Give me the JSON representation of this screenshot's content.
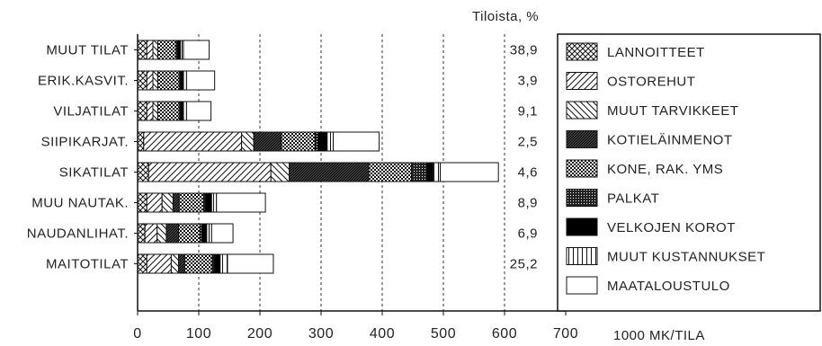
{
  "chart_data": {
    "type": "bar",
    "orientation": "horizontal",
    "stacked": true,
    "title": "",
    "share_header": "Tiloista, %",
    "xlabel": "1000 MK/TILA",
    "ylabel": "",
    "xlim": [
      0,
      700
    ],
    "xticks": [
      "0",
      "100",
      "200",
      "300",
      "400",
      "500",
      "600",
      "700"
    ],
    "grid": "vertical-dashed",
    "legend_position": "right",
    "categories": [
      "MUUT TILAT",
      "ERIK.KASVIT.",
      "VILJATILAT",
      "SIIPIKARJAT.",
      "SIKATILAT",
      "MUU NAUTAK.",
      "NAUDANLIHAT.",
      "MAITOTILAT"
    ],
    "shares": [
      "38,9",
      "3,9",
      "9,1",
      "2,5",
      "4,6",
      "8,9",
      "6,9",
      "25,2"
    ],
    "series": [
      {
        "name": "LANNOITTEET",
        "pattern": "crosshatch",
        "values": [
          15,
          15,
          15,
          10,
          18,
          15,
          12,
          15
        ]
      },
      {
        "name": "OSTOREHUT",
        "pattern": "diag-forward",
        "values": [
          10,
          10,
          10,
          160,
          200,
          25,
          20,
          40
        ]
      },
      {
        "name": "MUUT TARVIKKEET",
        "pattern": "diag-back",
        "values": [
          8,
          8,
          8,
          20,
          30,
          18,
          15,
          12
        ]
      },
      {
        "name": "KOTIELÄINMENOT",
        "pattern": "dense-diag",
        "values": [
          0,
          0,
          0,
          45,
          130,
          10,
          20,
          10
        ]
      },
      {
        "name": "KONE, RAK. YMS",
        "pattern": "grid",
        "values": [
          30,
          35,
          35,
          55,
          70,
          40,
          35,
          45
        ]
      },
      {
        "name": "PALKAT",
        "pattern": "dense-grid",
        "values": [
          2,
          2,
          2,
          5,
          25,
          3,
          3,
          3
        ]
      },
      {
        "name": "VELKOJEN KOROT",
        "pattern": "solid",
        "values": [
          5,
          5,
          5,
          15,
          10,
          10,
          8,
          10
        ]
      },
      {
        "name": "MUUT KUSTANNUKSET",
        "pattern": "vertical",
        "values": [
          5,
          5,
          5,
          10,
          12,
          8,
          8,
          12
        ]
      },
      {
        "name": "MAATALOUSTULO",
        "pattern": "empty",
        "values": [
          42,
          46,
          40,
          75,
          95,
          80,
          35,
          75
        ]
      }
    ]
  }
}
